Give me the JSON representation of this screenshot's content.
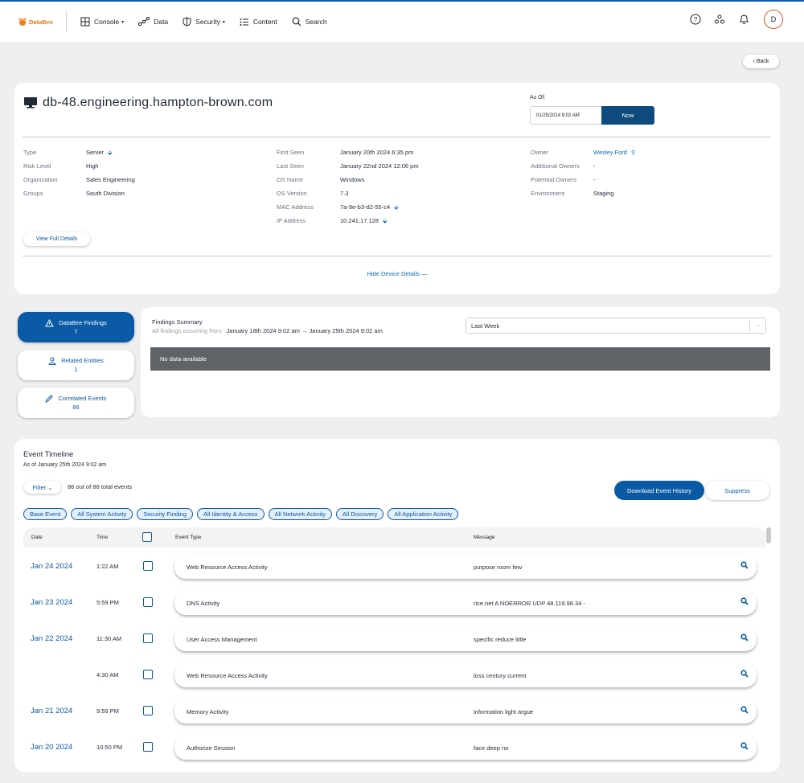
{
  "brand": {
    "name": "DataBee",
    "accent": "#0a5aa5",
    "logo_color": "#f07a1d"
  },
  "nav": {
    "items": [
      {
        "label": "Console",
        "icon": "grid-icon",
        "caret": "▾"
      },
      {
        "label": "Data",
        "icon": "nodes-icon",
        "caret": ""
      },
      {
        "label": "Security",
        "icon": "shield-icon",
        "caret": "▾"
      },
      {
        "label": "Content",
        "icon": "list-icon",
        "caret": ""
      },
      {
        "label": "Search",
        "icon": "search-icon",
        "caret": ""
      }
    ],
    "avatar_initial": "D"
  },
  "back_label": "‹ Back",
  "device": {
    "title": "db-48.engineering.hampton-brown.com",
    "as_of_label": "As Of:",
    "as_of_value": "01/25/2024 9:02 AM",
    "now_label": "Now",
    "col1": [
      {
        "label": "Type",
        "value": "Server"
      },
      {
        "label": "Risk Level",
        "value": "High"
      },
      {
        "label": "Organization",
        "value": "Sales Engineering"
      },
      {
        "label": "Groups",
        "value": "South Division"
      }
    ],
    "col2": [
      {
        "label": "First Seen",
        "value": "January 20th 2024 6:35 pm"
      },
      {
        "label": "Last Seen",
        "value": "January 22nd 2024 12:06 pm"
      },
      {
        "label": "OS Name",
        "value": "Windows"
      },
      {
        "label": "OS Version",
        "value": "7.3"
      },
      {
        "label": "MAC Address",
        "value": "7a-9e-b3-d2-55-c4"
      },
      {
        "label": "IP Address",
        "value": "10.241.17.128"
      }
    ],
    "col3": [
      {
        "label": "Owner",
        "value": "Wesley Ford"
      },
      {
        "label": "Additional Owners",
        "value": "-"
      },
      {
        "label": "Potential Owners",
        "value": "-"
      },
      {
        "label": "Environment",
        "value": "Staging"
      }
    ],
    "view_full_label": "View Full Details",
    "hide_label": "Hide Device Details —"
  },
  "side": {
    "findings": {
      "label": "DataBee Findings",
      "count": "7"
    },
    "related": {
      "label": "Related Entities",
      "count": "1"
    },
    "correlated": {
      "label": "Correlated Events",
      "count": "86"
    }
  },
  "findings": {
    "title": "Findings Summary",
    "sub_prefix": "All findings occurring from:",
    "range": "January 18th 2024 9:02 am → January 25th 2024 9:02 am",
    "select_value": "Last Week",
    "no_data": "No data available"
  },
  "timeline": {
    "title": "Event Timeline",
    "sub": "As of January 25th 2024 9:02 am",
    "filter_label": "Filter ⌄",
    "count_text": "86 out of 86 total events",
    "download_label": "Download Event History",
    "suppress_label": "Suppress",
    "chips": [
      "Base Event",
      "All System Activity",
      "Security Finding",
      "All Identity & Access",
      "All Network Activity",
      "All Discovery",
      "All Application Activity"
    ],
    "headers": {
      "date": "Date",
      "time": "Time",
      "event_type": "Event Type",
      "message": "Message"
    },
    "rows": [
      {
        "date": "Jan 24 2024",
        "time": "1:22 AM",
        "event_type": "Web Resource Access Activity",
        "message": "purpose room few"
      },
      {
        "date": "Jan 23 2024",
        "time": "5:59 PM",
        "event_type": "DNS Activity",
        "message": "rice.net A NOERROR UDP 48.119.98.34 -"
      },
      {
        "date": "Jan 22 2024",
        "time": "11:30 AM",
        "event_type": "User Access Management",
        "message": "specific reduce little"
      },
      {
        "date": "",
        "time": "4:30 AM",
        "event_type": "Web Resource Access Activity",
        "message": "loss century current"
      },
      {
        "date": "Jan 21 2024",
        "time": "9:59 PM",
        "event_type": "Memory Activity",
        "message": "information light argue"
      },
      {
        "date": "Jan 20 2024",
        "time": "10:50 PM",
        "event_type": "Authorize Session",
        "message": "face deep no"
      }
    ]
  }
}
